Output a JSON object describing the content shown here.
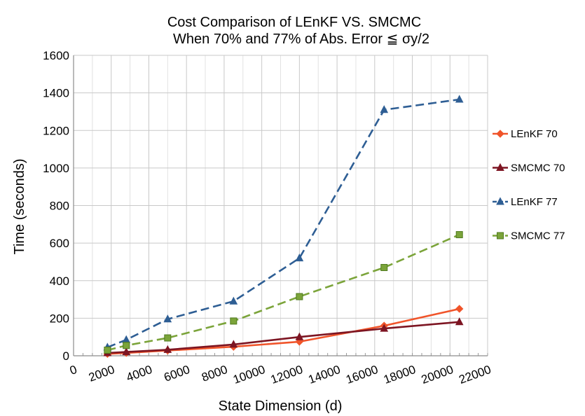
{
  "chart_data": {
    "type": "line",
    "title": [
      "Cost Comparison of  LEnKF  VS.  SMCMC",
      "When 70% and 77% of Abs. Error ≦ σy/2"
    ],
    "xlabel": "State Dimension (d)",
    "ylabel": "Time (seconds)",
    "xlim": [
      0,
      22000
    ],
    "ylim": [
      0,
      1600
    ],
    "xticks": [
      0,
      2000,
      4000,
      6000,
      8000,
      10000,
      12000,
      14000,
      16000,
      18000,
      20000,
      22000
    ],
    "yticks": [
      0,
      200,
      400,
      600,
      800,
      1000,
      1200,
      1400,
      1600
    ],
    "grid": true,
    "legend_position": "right",
    "series": [
      {
        "name": "LEnKF 70",
        "color": "#f0542a",
        "marker": "diamond",
        "dash": "solid",
        "x": [
          1800,
          2800,
          5000,
          8500,
          12000,
          16500,
          20500
        ],
        "y": [
          10,
          15,
          28,
          48,
          75,
          160,
          250
        ]
      },
      {
        "name": "SMCMC 70",
        "color": "#7d1522",
        "marker": "triangle",
        "dash": "solid",
        "x": [
          1800,
          2800,
          5000,
          8500,
          12000,
          16500,
          20500
        ],
        "y": [
          15,
          20,
          32,
          60,
          100,
          145,
          180
        ]
      },
      {
        "name": "LEnKF 77",
        "color": "#2e5e94",
        "marker": "triangle",
        "dash": "dash",
        "x": [
          1800,
          2800,
          5000,
          8500,
          12000,
          16500,
          20500
        ],
        "y": [
          45,
          85,
          195,
          290,
          520,
          1310,
          1365
        ]
      },
      {
        "name": "SMCMC 77",
        "color": "#7ba43a",
        "marker": "square",
        "dash": "dash",
        "x": [
          1800,
          2800,
          5000,
          8500,
          12000,
          16500,
          20500
        ],
        "y": [
          30,
          55,
          95,
          185,
          315,
          470,
          645
        ]
      }
    ]
  }
}
